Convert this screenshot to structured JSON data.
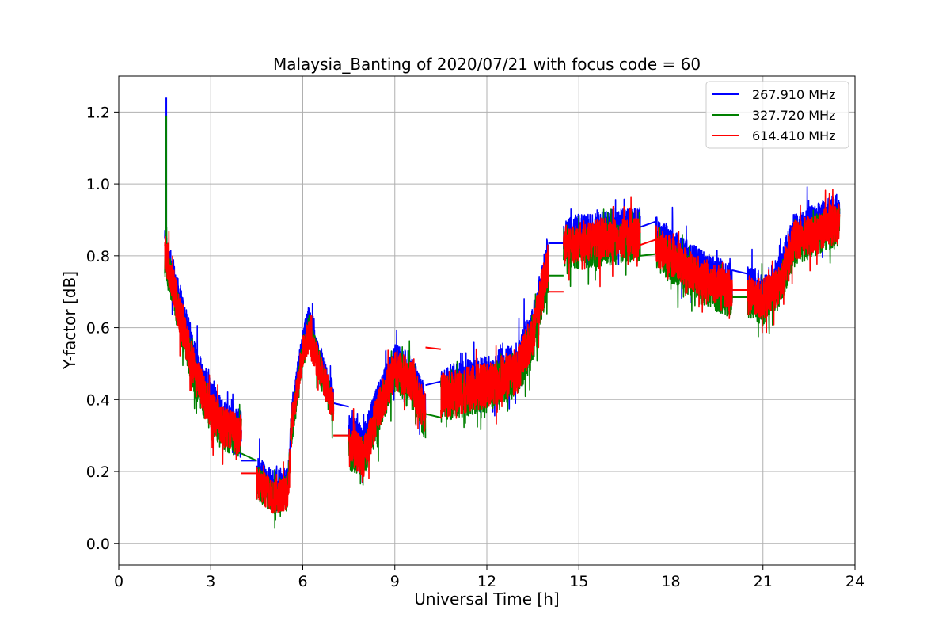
{
  "chart_data": {
    "type": "line",
    "title": "Malaysia_Banting of 2020/07/21 with focus code = 60",
    "xlabel": "Universal Time [h]",
    "ylabel": "Y-factor [dB]",
    "xlim": [
      0,
      24
    ],
    "ylim": [
      -0.06,
      1.3
    ],
    "xticks": [
      0,
      3,
      6,
      9,
      12,
      15,
      18,
      21,
      24
    ],
    "yticks": [
      0.0,
      0.2,
      0.4,
      0.6,
      0.8,
      1.0,
      1.2
    ],
    "ytick_labels": [
      "0.0",
      "0.2",
      "0.4",
      "0.6",
      "0.8",
      "1.0",
      "1.2"
    ],
    "grid": true,
    "legend_position": "top-right",
    "series": [
      {
        "name": "267.910 MHz",
        "color": "#0000ff",
        "segments": [
          {
            "x": [
              1.5,
              2.0,
              2.5,
              3.0,
              3.5,
              4.0
            ],
            "y": [
              0.83,
              0.66,
              0.5,
              0.4,
              0.34,
              0.32
            ],
            "noise": 0.07,
            "spike": [
              1.55,
              1.24
            ]
          },
          {
            "x": [
              4.5,
              5.0,
              5.5,
              5.6
            ],
            "y": [
              0.2,
              0.16,
              0.16,
              0.28
            ],
            "noise": 0.06
          },
          {
            "x": [
              5.6,
              6.0,
              6.2,
              6.5,
              7.0
            ],
            "y": [
              0.33,
              0.55,
              0.62,
              0.52,
              0.4
            ],
            "noise": 0.06
          },
          {
            "x": [
              7.5,
              8.0,
              8.5,
              9.0,
              9.5,
              10.0
            ],
            "y": [
              0.3,
              0.28,
              0.4,
              0.5,
              0.48,
              0.38
            ],
            "noise": 0.07
          },
          {
            "x": [
              10.5,
              11.0,
              12.0,
              13.0,
              13.5,
              14.0
            ],
            "y": [
              0.42,
              0.44,
              0.46,
              0.5,
              0.6,
              0.8
            ],
            "noise": 0.08
          },
          {
            "x": [
              14.5,
              15.0,
              16.0,
              17.0
            ],
            "y": [
              0.85,
              0.86,
              0.87,
              0.88
            ],
            "noise": 0.07
          },
          {
            "x": [
              17.5,
              18.0,
              19.0,
              20.0
            ],
            "y": [
              0.86,
              0.82,
              0.76,
              0.72
            ],
            "noise": 0.07
          },
          {
            "x": [
              20.5,
              21.0,
              21.5,
              22.0,
              23.0,
              23.5
            ],
            "y": [
              0.72,
              0.7,
              0.74,
              0.86,
              0.9,
              0.92
            ],
            "noise": 0.07
          }
        ],
        "connectors": [
          {
            "x": [
              4.0,
              4.5
            ],
            "y": [
              0.23,
              0.23
            ]
          },
          {
            "x": [
              7.0,
              7.5
            ],
            "y": [
              0.39,
              0.38
            ]
          },
          {
            "x": [
              10.0,
              10.5
            ],
            "y": [
              0.44,
              0.45
            ]
          },
          {
            "x": [
              14.0,
              14.5
            ],
            "y": [
              0.835,
              0.835
            ]
          },
          {
            "x": [
              17.0,
              17.5
            ],
            "y": [
              0.88,
              0.895
            ]
          },
          {
            "x": [
              20.0,
              20.5
            ],
            "y": [
              0.76,
              0.75
            ]
          }
        ]
      },
      {
        "name": "327.720 MHz",
        "color": "#008000",
        "segments": [
          {
            "x": [
              1.5,
              2.0,
              2.5,
              3.0,
              3.5,
              4.0
            ],
            "y": [
              0.8,
              0.62,
              0.46,
              0.36,
              0.31,
              0.29
            ],
            "noise": 0.07,
            "spike": [
              1.55,
              1.19
            ]
          },
          {
            "x": [
              4.5,
              5.0,
              5.5,
              5.6
            ],
            "y": [
              0.17,
              0.13,
              0.14,
              0.25
            ],
            "noise": 0.06
          },
          {
            "x": [
              5.6,
              6.0,
              6.2,
              6.5,
              7.0
            ],
            "y": [
              0.3,
              0.52,
              0.6,
              0.5,
              0.37
            ],
            "noise": 0.06
          },
          {
            "x": [
              7.5,
              8.0,
              8.5,
              9.0,
              9.5,
              10.0
            ],
            "y": [
              0.26,
              0.24,
              0.37,
              0.47,
              0.45,
              0.34
            ],
            "noise": 0.07
          },
          {
            "x": [
              10.5,
              11.0,
              12.0,
              13.0,
              13.5,
              14.0
            ],
            "y": [
              0.4,
              0.41,
              0.43,
              0.47,
              0.56,
              0.76
            ],
            "noise": 0.08
          },
          {
            "x": [
              14.5,
              15.0,
              16.0,
              17.0
            ],
            "y": [
              0.82,
              0.82,
              0.83,
              0.84
            ],
            "noise": 0.07
          },
          {
            "x": [
              17.5,
              18.0,
              19.0,
              20.0
            ],
            "y": [
              0.82,
              0.78,
              0.72,
              0.68
            ],
            "noise": 0.07
          },
          {
            "x": [
              20.5,
              21.0,
              21.5,
              22.0,
              23.0,
              23.5
            ],
            "y": [
              0.68,
              0.66,
              0.7,
              0.82,
              0.87,
              0.88
            ],
            "noise": 0.07
          }
        ],
        "connectors": [
          {
            "x": [
              4.0,
              4.5
            ],
            "y": [
              0.25,
              0.23
            ]
          },
          {
            "x": [
              7.0,
              7.5
            ],
            "y": [
              0.3,
              0.3
            ]
          },
          {
            "x": [
              10.0,
              10.5
            ],
            "y": [
              0.36,
              0.35
            ]
          },
          {
            "x": [
              14.0,
              14.5
            ],
            "y": [
              0.745,
              0.745
            ]
          },
          {
            "x": [
              17.0,
              17.5
            ],
            "y": [
              0.8,
              0.805
            ]
          },
          {
            "x": [
              20.0,
              20.5
            ],
            "y": [
              0.685,
              0.685
            ]
          }
        ]
      },
      {
        "name": "614.410 MHz",
        "color": "#ff0000",
        "segments": [
          {
            "x": [
              1.5,
              2.0,
              2.5,
              3.0,
              3.5,
              4.0
            ],
            "y": [
              0.82,
              0.63,
              0.47,
              0.37,
              0.32,
              0.3
            ],
            "noise": 0.07
          },
          {
            "x": [
              4.5,
              5.0,
              5.5,
              5.6
            ],
            "y": [
              0.17,
              0.13,
              0.14,
              0.24
            ],
            "noise": 0.06
          },
          {
            "x": [
              5.6,
              6.0,
              6.2,
              6.5,
              7.0
            ],
            "y": [
              0.32,
              0.53,
              0.58,
              0.5,
              0.38
            ],
            "noise": 0.06
          },
          {
            "x": [
              7.5,
              8.0,
              8.5,
              9.0,
              9.5,
              10.0
            ],
            "y": [
              0.27,
              0.24,
              0.38,
              0.48,
              0.46,
              0.36
            ],
            "noise": 0.07
          },
          {
            "x": [
              10.5,
              11.0,
              12.0,
              13.0,
              13.5,
              14.0
            ],
            "y": [
              0.41,
              0.42,
              0.44,
              0.48,
              0.58,
              0.78
            ],
            "noise": 0.08
          },
          {
            "x": [
              14.5,
              15.0,
              16.0,
              17.0
            ],
            "y": [
              0.83,
              0.84,
              0.85,
              0.85
            ],
            "noise": 0.07
          },
          {
            "x": [
              17.5,
              18.0,
              19.0,
              20.0
            ],
            "y": [
              0.83,
              0.8,
              0.74,
              0.7
            ],
            "noise": 0.07
          },
          {
            "x": [
              20.5,
              21.0,
              21.5,
              22.0,
              23.0,
              23.5
            ],
            "y": [
              0.69,
              0.68,
              0.71,
              0.84,
              0.88,
              0.89
            ],
            "noise": 0.07
          }
        ],
        "connectors": [
          {
            "x": [
              4.0,
              4.5
            ],
            "y": [
              0.195,
              0.195
            ]
          },
          {
            "x": [
              7.0,
              7.5
            ],
            "y": [
              0.3,
              0.3
            ]
          },
          {
            "x": [
              10.0,
              10.5
            ],
            "y": [
              0.545,
              0.54
            ]
          },
          {
            "x": [
              14.0,
              14.5
            ],
            "y": [
              0.7,
              0.7
            ]
          },
          {
            "x": [
              17.0,
              17.5
            ],
            "y": [
              0.83,
              0.845
            ]
          },
          {
            "x": [
              20.0,
              20.5
            ],
            "y": [
              0.705,
              0.705
            ]
          }
        ]
      }
    ]
  }
}
